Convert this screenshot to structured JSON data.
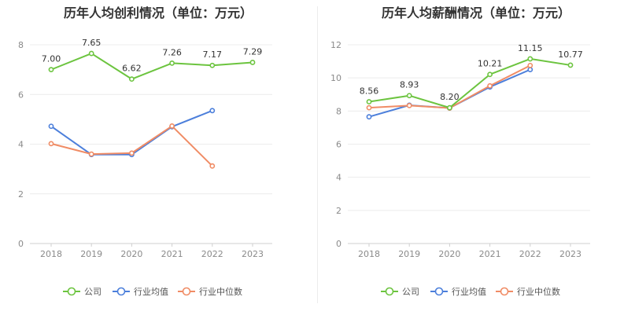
{
  "chart_data": [
    {
      "type": "line",
      "title": "历年人均创利情况（单位：万元）",
      "categories": [
        "2018",
        "2019",
        "2020",
        "2021",
        "2022",
        "2023"
      ],
      "ylim": [
        0,
        8
      ],
      "yticks": [
        "0",
        "2",
        "4",
        "6",
        "8"
      ],
      "grid": true,
      "legend_position": "bottom",
      "series": [
        {
          "name": "公司",
          "color": "#6cc43f",
          "values": [
            7.0,
            7.65,
            6.62,
            7.26,
            7.17,
            7.29
          ],
          "labels": [
            "7.00",
            "7.65",
            "6.62",
            "7.26",
            "7.17",
            "7.29"
          ]
        },
        {
          "name": "行业均值",
          "color": "#4c7fdb",
          "values": [
            4.72,
            3.58,
            3.58,
            4.7,
            5.35,
            null
          ],
          "labels": []
        },
        {
          "name": "行业中位数",
          "color": "#f08c65",
          "values": [
            4.02,
            3.6,
            3.64,
            4.73,
            3.12,
            null
          ],
          "labels": []
        }
      ]
    },
    {
      "type": "line",
      "title": "历年人均薪酬情况（单位：万元）",
      "categories": [
        "2018",
        "2019",
        "2020",
        "2021",
        "2022",
        "2023"
      ],
      "ylim": [
        0,
        12
      ],
      "yticks": [
        "0",
        "2",
        "4",
        "6",
        "8",
        "10",
        "12"
      ],
      "grid": true,
      "legend_position": "bottom",
      "series": [
        {
          "name": "公司",
          "color": "#6cc43f",
          "values": [
            8.56,
            8.93,
            8.2,
            10.21,
            11.15,
            10.77
          ],
          "labels": [
            "8.56",
            "8.93",
            "8.20",
            "10.21",
            "11.15",
            "10.77"
          ]
        },
        {
          "name": "行业均值",
          "color": "#4c7fdb",
          "values": [
            7.65,
            8.35,
            8.18,
            9.45,
            10.5,
            null
          ],
          "labels": []
        },
        {
          "name": "行业中位数",
          "color": "#f08c65",
          "values": [
            8.2,
            8.33,
            8.18,
            9.52,
            10.75,
            null
          ],
          "labels": []
        }
      ]
    }
  ]
}
